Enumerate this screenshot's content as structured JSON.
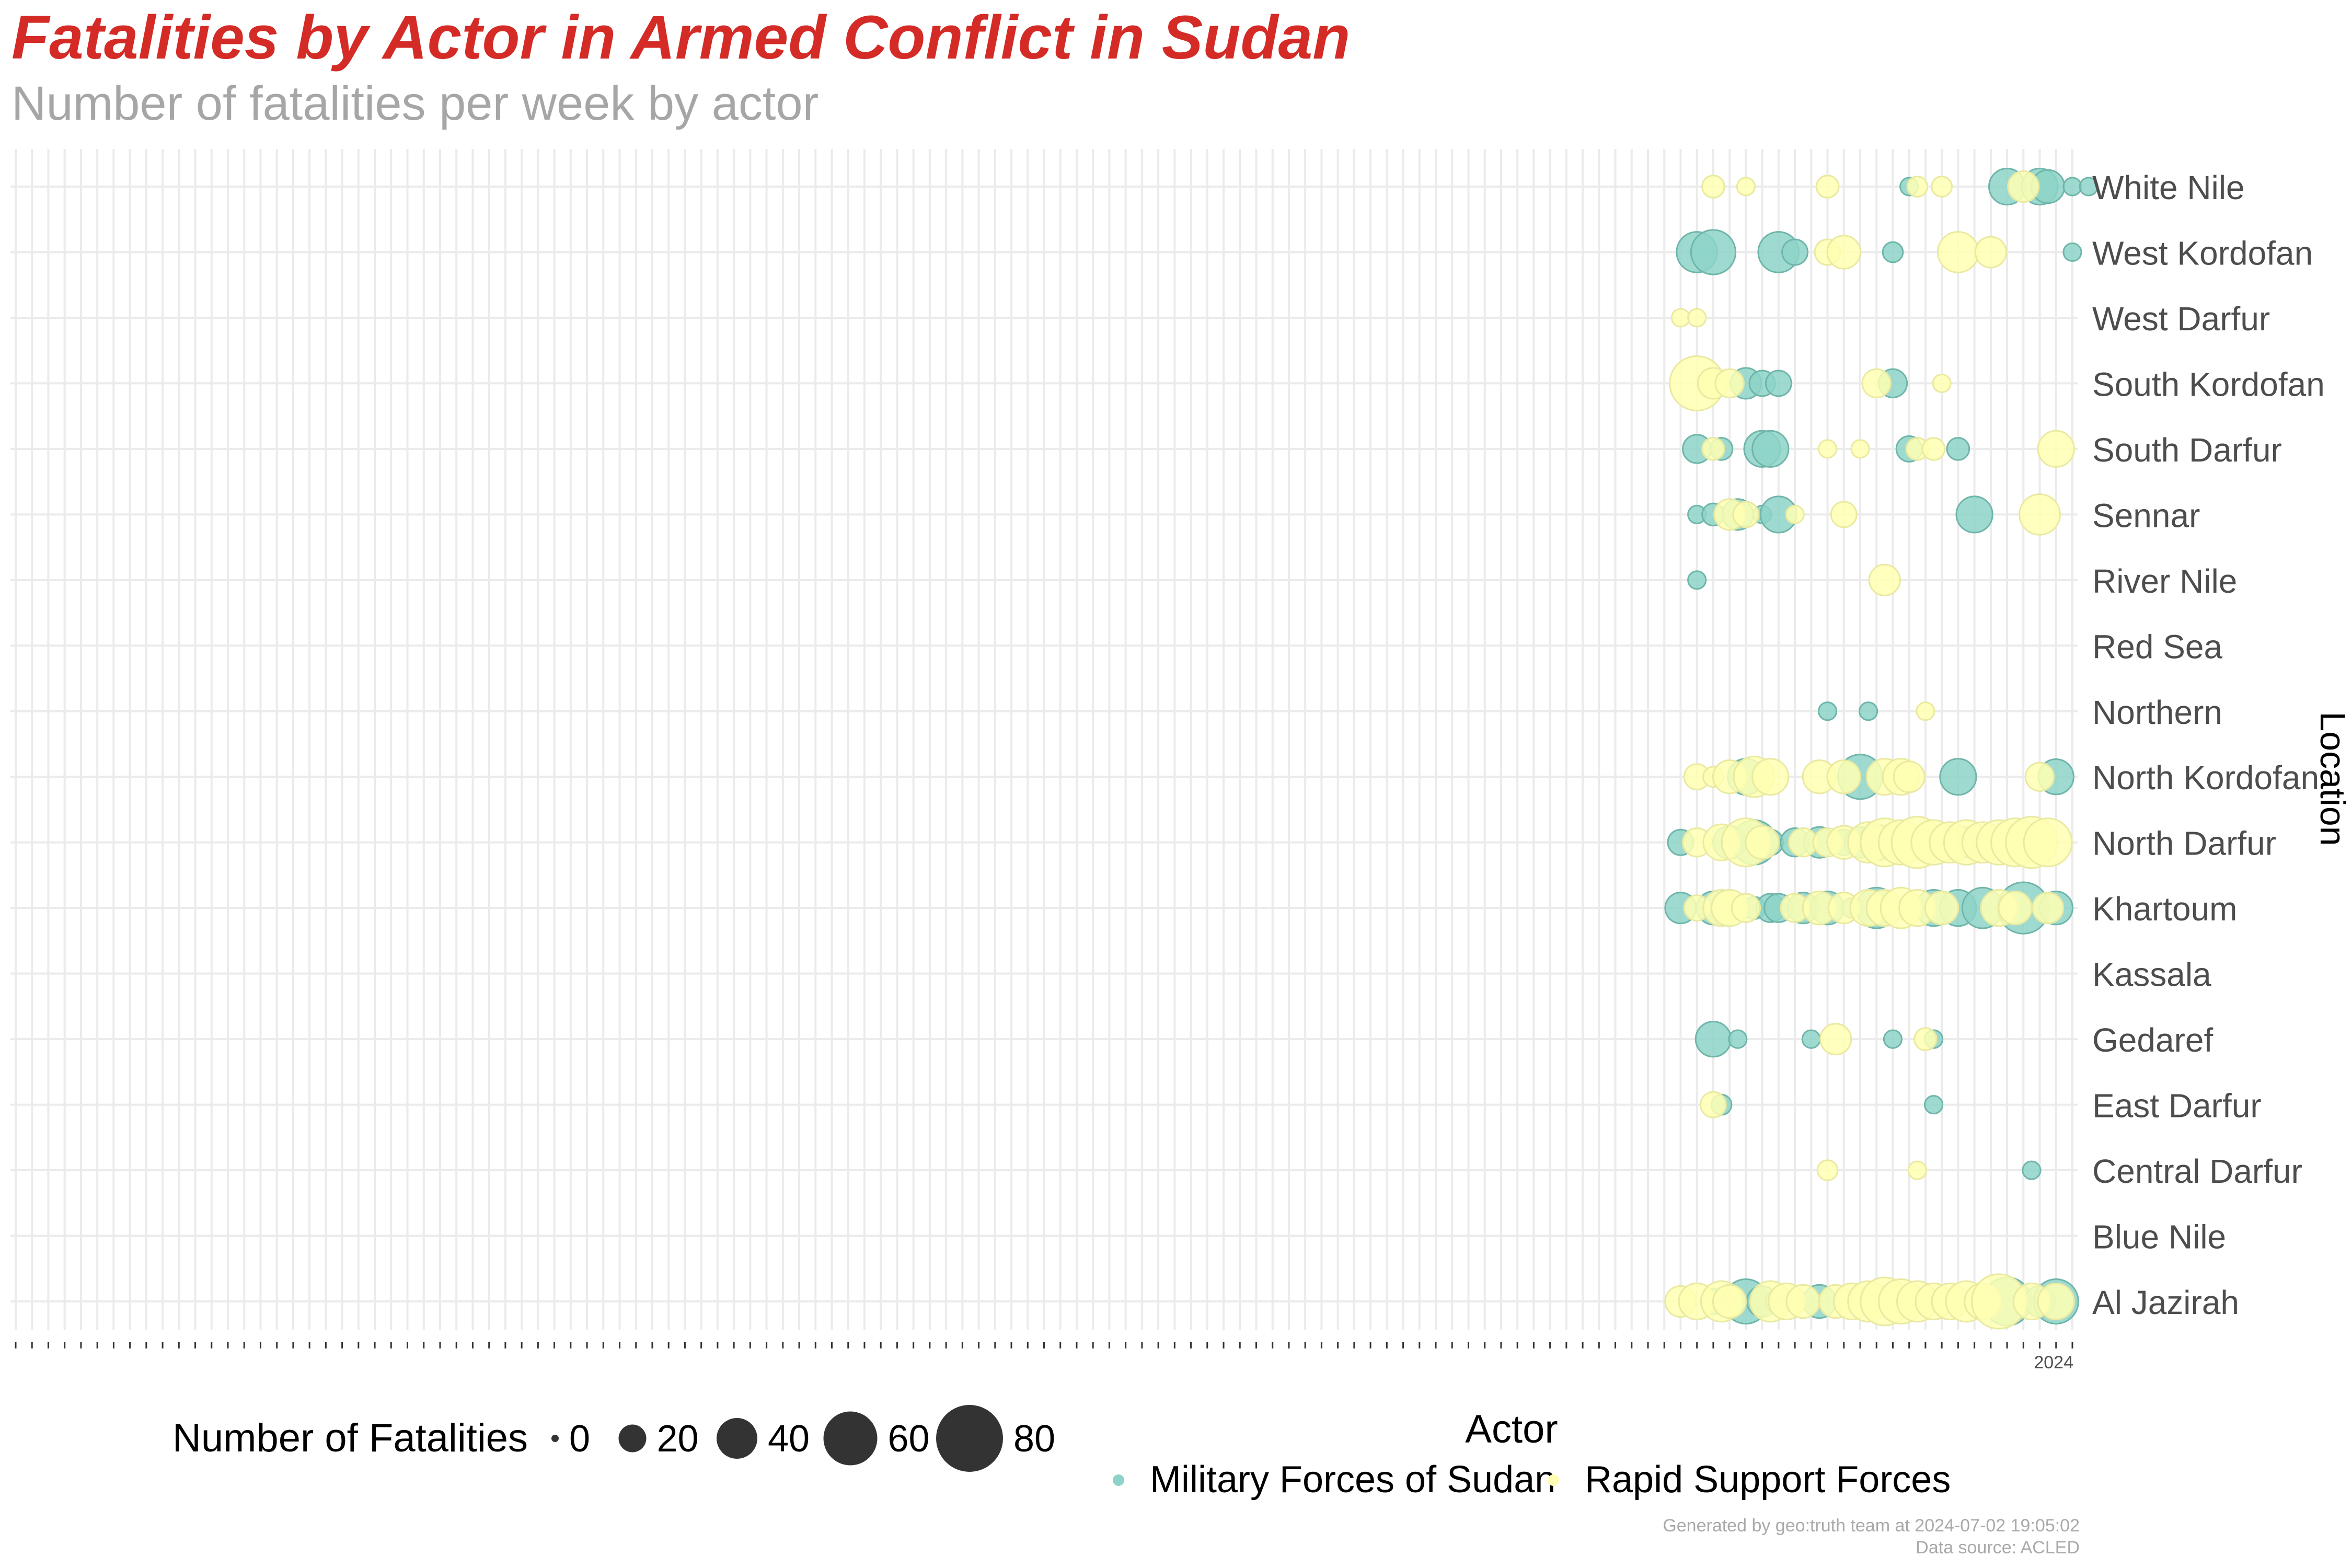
{
  "title": "Fatalities by Actor in Armed Conflict in Sudan",
  "subtitle": "Number of fatalities per week by actor",
  "caption": {
    "line1": "Generated by geo:truth team at 2024-07-02 19:05:02",
    "line2": "Data source: ACLED"
  },
  "colors": {
    "title": "#d42b27",
    "military": "#8dd3c7",
    "rsf": "#ffffb3",
    "grid": "#ebebeb"
  },
  "chart_data": {
    "type": "scatter",
    "xlabel": "",
    "ylabel": "Location",
    "x_axis": "week",
    "x_last_tick_label": "2024",
    "grid": true,
    "locations": [
      "White Nile",
      "West Kordofan",
      "West Darfur",
      "South Kordofan",
      "South Darfur",
      "Sennar",
      "River Nile",
      "Red Sea",
      "Northern",
      "North Kordofan",
      "North Darfur",
      "Khartoum",
      "Kassala",
      "Gedaref",
      "East Darfur",
      "Central Darfur",
      "Blue Nile",
      "Al Jazirah"
    ],
    "size_legend": {
      "title": "Number of Fatalities",
      "breaks": [
        0,
        20,
        40,
        60,
        80
      ]
    },
    "color_legend": {
      "title": "Actor",
      "entries": [
        "Military Forces of Sudan",
        "Rapid Support Forces"
      ]
    },
    "series": [
      {
        "name": "Military Forces of Sudan",
        "color": "#8dd3c7",
        "points": [
          [
            "White Nile",
            116,
            2
          ],
          [
            "White Nile",
            122,
            15
          ],
          [
            "White Nile",
            124,
            15
          ],
          [
            "White Nile",
            124.5,
            12
          ],
          [
            "White Nile",
            126,
            2
          ],
          [
            "White Nile",
            127,
            2
          ],
          [
            "West Kordofan",
            103,
            20
          ],
          [
            "West Kordofan",
            104,
            25
          ],
          [
            "West Kordofan",
            108,
            20
          ],
          [
            "West Kordofan",
            109,
            6
          ],
          [
            "West Kordofan",
            115,
            3
          ],
          [
            "West Kordofan",
            126,
            2
          ],
          [
            "South Kordofan",
            106,
            10
          ],
          [
            "South Kordofan",
            107,
            6
          ],
          [
            "South Kordofan",
            108,
            6
          ],
          [
            "South Kordofan",
            115,
            8
          ],
          [
            "South Darfur",
            103,
            8
          ],
          [
            "South Darfur",
            104.5,
            4
          ],
          [
            "South Darfur",
            107,
            15
          ],
          [
            "South Darfur",
            107.5,
            15
          ],
          [
            "South Darfur",
            116,
            6
          ],
          [
            "South Darfur",
            119,
            4
          ],
          [
            "Sennar",
            103,
            2
          ],
          [
            "Sennar",
            104,
            4
          ],
          [
            "Sennar",
            105.5,
            10
          ],
          [
            "Sennar",
            107,
            2
          ],
          [
            "Sennar",
            108,
            15
          ],
          [
            "Sennar",
            120,
            15
          ],
          [
            "River Nile",
            103,
            2
          ],
          [
            "Northern",
            111,
            2
          ],
          [
            "Northern",
            113.5,
            2
          ],
          [
            "North Kordofan",
            106,
            15
          ],
          [
            "North Kordofan",
            113,
            25
          ],
          [
            "North Kordofan",
            119,
            15
          ],
          [
            "North Kordofan",
            125,
            14
          ],
          [
            "North Darfur",
            102,
            6
          ],
          [
            "North Darfur",
            105,
            12
          ],
          [
            "North Darfur",
            106.5,
            25
          ],
          [
            "North Darfur",
            107.5,
            6
          ],
          [
            "North Darfur",
            109,
            8
          ],
          [
            "North Darfur",
            110.5,
            10
          ],
          [
            "North Darfur",
            112,
            6
          ],
          [
            "North Darfur",
            113,
            10
          ],
          [
            "North Darfur",
            114,
            15
          ],
          [
            "North Darfur",
            119,
            12
          ],
          [
            "North Darfur",
            120,
            12
          ],
          [
            "Khartoum",
            102,
            10
          ],
          [
            "Khartoum",
            104,
            12
          ],
          [
            "Khartoum",
            106.5,
            4
          ],
          [
            "Khartoum",
            107.5,
            8
          ],
          [
            "Khartoum",
            108,
            8
          ],
          [
            "Khartoum",
            109.5,
            10
          ],
          [
            "Khartoum",
            111,
            12
          ],
          [
            "Khartoum",
            112.5,
            3
          ],
          [
            "Khartoum",
            114,
            20
          ],
          [
            "Khartoum",
            117.5,
            15
          ],
          [
            "Khartoum",
            119,
            15
          ],
          [
            "Khartoum",
            120.5,
            20
          ],
          [
            "Khartoum",
            123,
            35
          ],
          [
            "Khartoum",
            125,
            12
          ],
          [
            "Gedaref",
            104,
            14
          ],
          [
            "Gedaref",
            105.5,
            2
          ],
          [
            "Gedaref",
            110,
            2
          ],
          [
            "Gedaref",
            115,
            2
          ],
          [
            "Gedaref",
            117.5,
            2
          ],
          [
            "East Darfur",
            104.5,
            3
          ],
          [
            "East Darfur",
            117.5,
            2
          ],
          [
            "Central Darfur",
            123.5,
            2
          ],
          [
            "Al Jazirah",
            104,
            6
          ],
          [
            "Al Jazirah",
            106,
            25
          ],
          [
            "Al Jazirah",
            107,
            10
          ],
          [
            "Al Jazirah",
            108,
            6
          ],
          [
            "Al Jazirah",
            110.5,
            12
          ],
          [
            "Al Jazirah",
            122,
            30
          ],
          [
            "Al Jazirah",
            124,
            10
          ],
          [
            "Al Jazirah",
            125,
            25
          ]
        ]
      },
      {
        "name": "Rapid Support Forces",
        "color": "#ffffb3",
        "points": [
          [
            "White Nile",
            104,
            4
          ],
          [
            "White Nile",
            106,
            2
          ],
          [
            "White Nile",
            111,
            4
          ],
          [
            "White Nile",
            116.5,
            3
          ],
          [
            "White Nile",
            118,
            3
          ],
          [
            "White Nile",
            123,
            10
          ],
          [
            "West Kordofan",
            111,
            6
          ],
          [
            "West Kordofan",
            112,
            12
          ],
          [
            "West Kordofan",
            119,
            20
          ],
          [
            "West Kordofan",
            121,
            10
          ],
          [
            "West Darfur",
            102,
            2
          ],
          [
            "West Darfur",
            103,
            2
          ],
          [
            "South Kordofan",
            103,
            40
          ],
          [
            "South Kordofan",
            104,
            10
          ],
          [
            "South Kordofan",
            105,
            8
          ],
          [
            "South Kordofan",
            114,
            8
          ],
          [
            "South Kordofan",
            118,
            2
          ],
          [
            "South Darfur",
            104,
            4
          ],
          [
            "South Darfur",
            111,
            2
          ],
          [
            "South Darfur",
            113,
            2
          ],
          [
            "South Darfur",
            116.5,
            4
          ],
          [
            "South Darfur",
            117.5,
            4
          ],
          [
            "South Darfur",
            125,
            15
          ],
          [
            "Sennar",
            105,
            10
          ],
          [
            "Sennar",
            106,
            6
          ],
          [
            "Sennar",
            109,
            2
          ],
          [
            "Sennar",
            112,
            6
          ],
          [
            "Sennar",
            124,
            20
          ],
          [
            "River Nile",
            114.5,
            10
          ],
          [
            "Northern",
            117,
            2
          ],
          [
            "North Kordofan",
            103,
            6
          ],
          [
            "North Kordofan",
            104,
            3
          ],
          [
            "North Kordofan",
            105,
            12
          ],
          [
            "North Kordofan",
            106.5,
            20
          ],
          [
            "North Kordofan",
            107.5,
            15
          ],
          [
            "North Kordofan",
            110.5,
            12
          ],
          [
            "North Kordofan",
            112,
            12
          ],
          [
            "North Kordofan",
            114.5,
            15
          ],
          [
            "North Kordofan",
            115.5,
            15
          ],
          [
            "North Kordofan",
            116,
            10
          ],
          [
            "North Kordofan",
            124,
            8
          ],
          [
            "North Darfur",
            103,
            8
          ],
          [
            "North Darfur",
            104.5,
            15
          ],
          [
            "North Darfur",
            106,
            30
          ],
          [
            "North Darfur",
            107,
            12
          ],
          [
            "North Darfur",
            109.5,
            8
          ],
          [
            "North Darfur",
            111,
            8
          ],
          [
            "North Darfur",
            112,
            12
          ],
          [
            "North Darfur",
            113.5,
            20
          ],
          [
            "North Darfur",
            114.5,
            30
          ],
          [
            "North Darfur",
            115.5,
            25
          ],
          [
            "North Darfur",
            116.5,
            35
          ],
          [
            "North Darfur",
            117.5,
            25
          ],
          [
            "North Darfur",
            118.5,
            20
          ],
          [
            "North Darfur",
            119.5,
            25
          ],
          [
            "North Darfur",
            120.5,
            20
          ],
          [
            "North Darfur",
            121.5,
            25
          ],
          [
            "North Darfur",
            122.5,
            30
          ],
          [
            "North Darfur",
            123.5,
            35
          ],
          [
            "North Darfur",
            124.5,
            30
          ],
          [
            "Khartoum",
            103,
            6
          ],
          [
            "Khartoum",
            104.5,
            15
          ],
          [
            "Khartoum",
            105,
            15
          ],
          [
            "Khartoum",
            106,
            8
          ],
          [
            "Khartoum",
            109,
            8
          ],
          [
            "Khartoum",
            110.5,
            12
          ],
          [
            "Khartoum",
            112,
            10
          ],
          [
            "Khartoum",
            113.5,
            15
          ],
          [
            "Khartoum",
            114.5,
            15
          ],
          [
            "Khartoum",
            115.5,
            20
          ],
          [
            "Khartoum",
            116.5,
            15
          ],
          [
            "Khartoum",
            118,
            12
          ],
          [
            "Khartoum",
            121.5,
            15
          ],
          [
            "Khartoum",
            122.5,
            12
          ],
          [
            "Khartoum",
            124.5,
            10
          ],
          [
            "Gedaref",
            111.5,
            10
          ],
          [
            "Gedaref",
            117,
            4
          ],
          [
            "East Darfur",
            104,
            6
          ],
          [
            "Central Darfur",
            111,
            3
          ],
          [
            "Central Darfur",
            116.5,
            2
          ],
          [
            "Al Jazirah",
            102,
            10
          ],
          [
            "Al Jazirah",
            103,
            15
          ],
          [
            "Al Jazirah",
            104.5,
            20
          ],
          [
            "Al Jazirah",
            105,
            12
          ],
          [
            "Al Jazirah",
            107.5,
            20
          ],
          [
            "Al Jazirah",
            108.5,
            15
          ],
          [
            "Al Jazirah",
            109.5,
            12
          ],
          [
            "Al Jazirah",
            111.5,
            12
          ],
          [
            "Al Jazirah",
            112.5,
            15
          ],
          [
            "Al Jazirah",
            113.5,
            20
          ],
          [
            "Al Jazirah",
            114.5,
            30
          ],
          [
            "Al Jazirah",
            115.5,
            25
          ],
          [
            "Al Jazirah",
            116.5,
            20
          ],
          [
            "Al Jazirah",
            117.5,
            15
          ],
          [
            "Al Jazirah",
            118.5,
            15
          ],
          [
            "Al Jazirah",
            119.5,
            20
          ],
          [
            "Al Jazirah",
            120.5,
            15
          ],
          [
            "Al Jazirah",
            121.5,
            40
          ],
          [
            "Al Jazirah",
            123.5,
            15
          ],
          [
            "Al Jazirah",
            125,
            15
          ]
        ]
      }
    ]
  }
}
